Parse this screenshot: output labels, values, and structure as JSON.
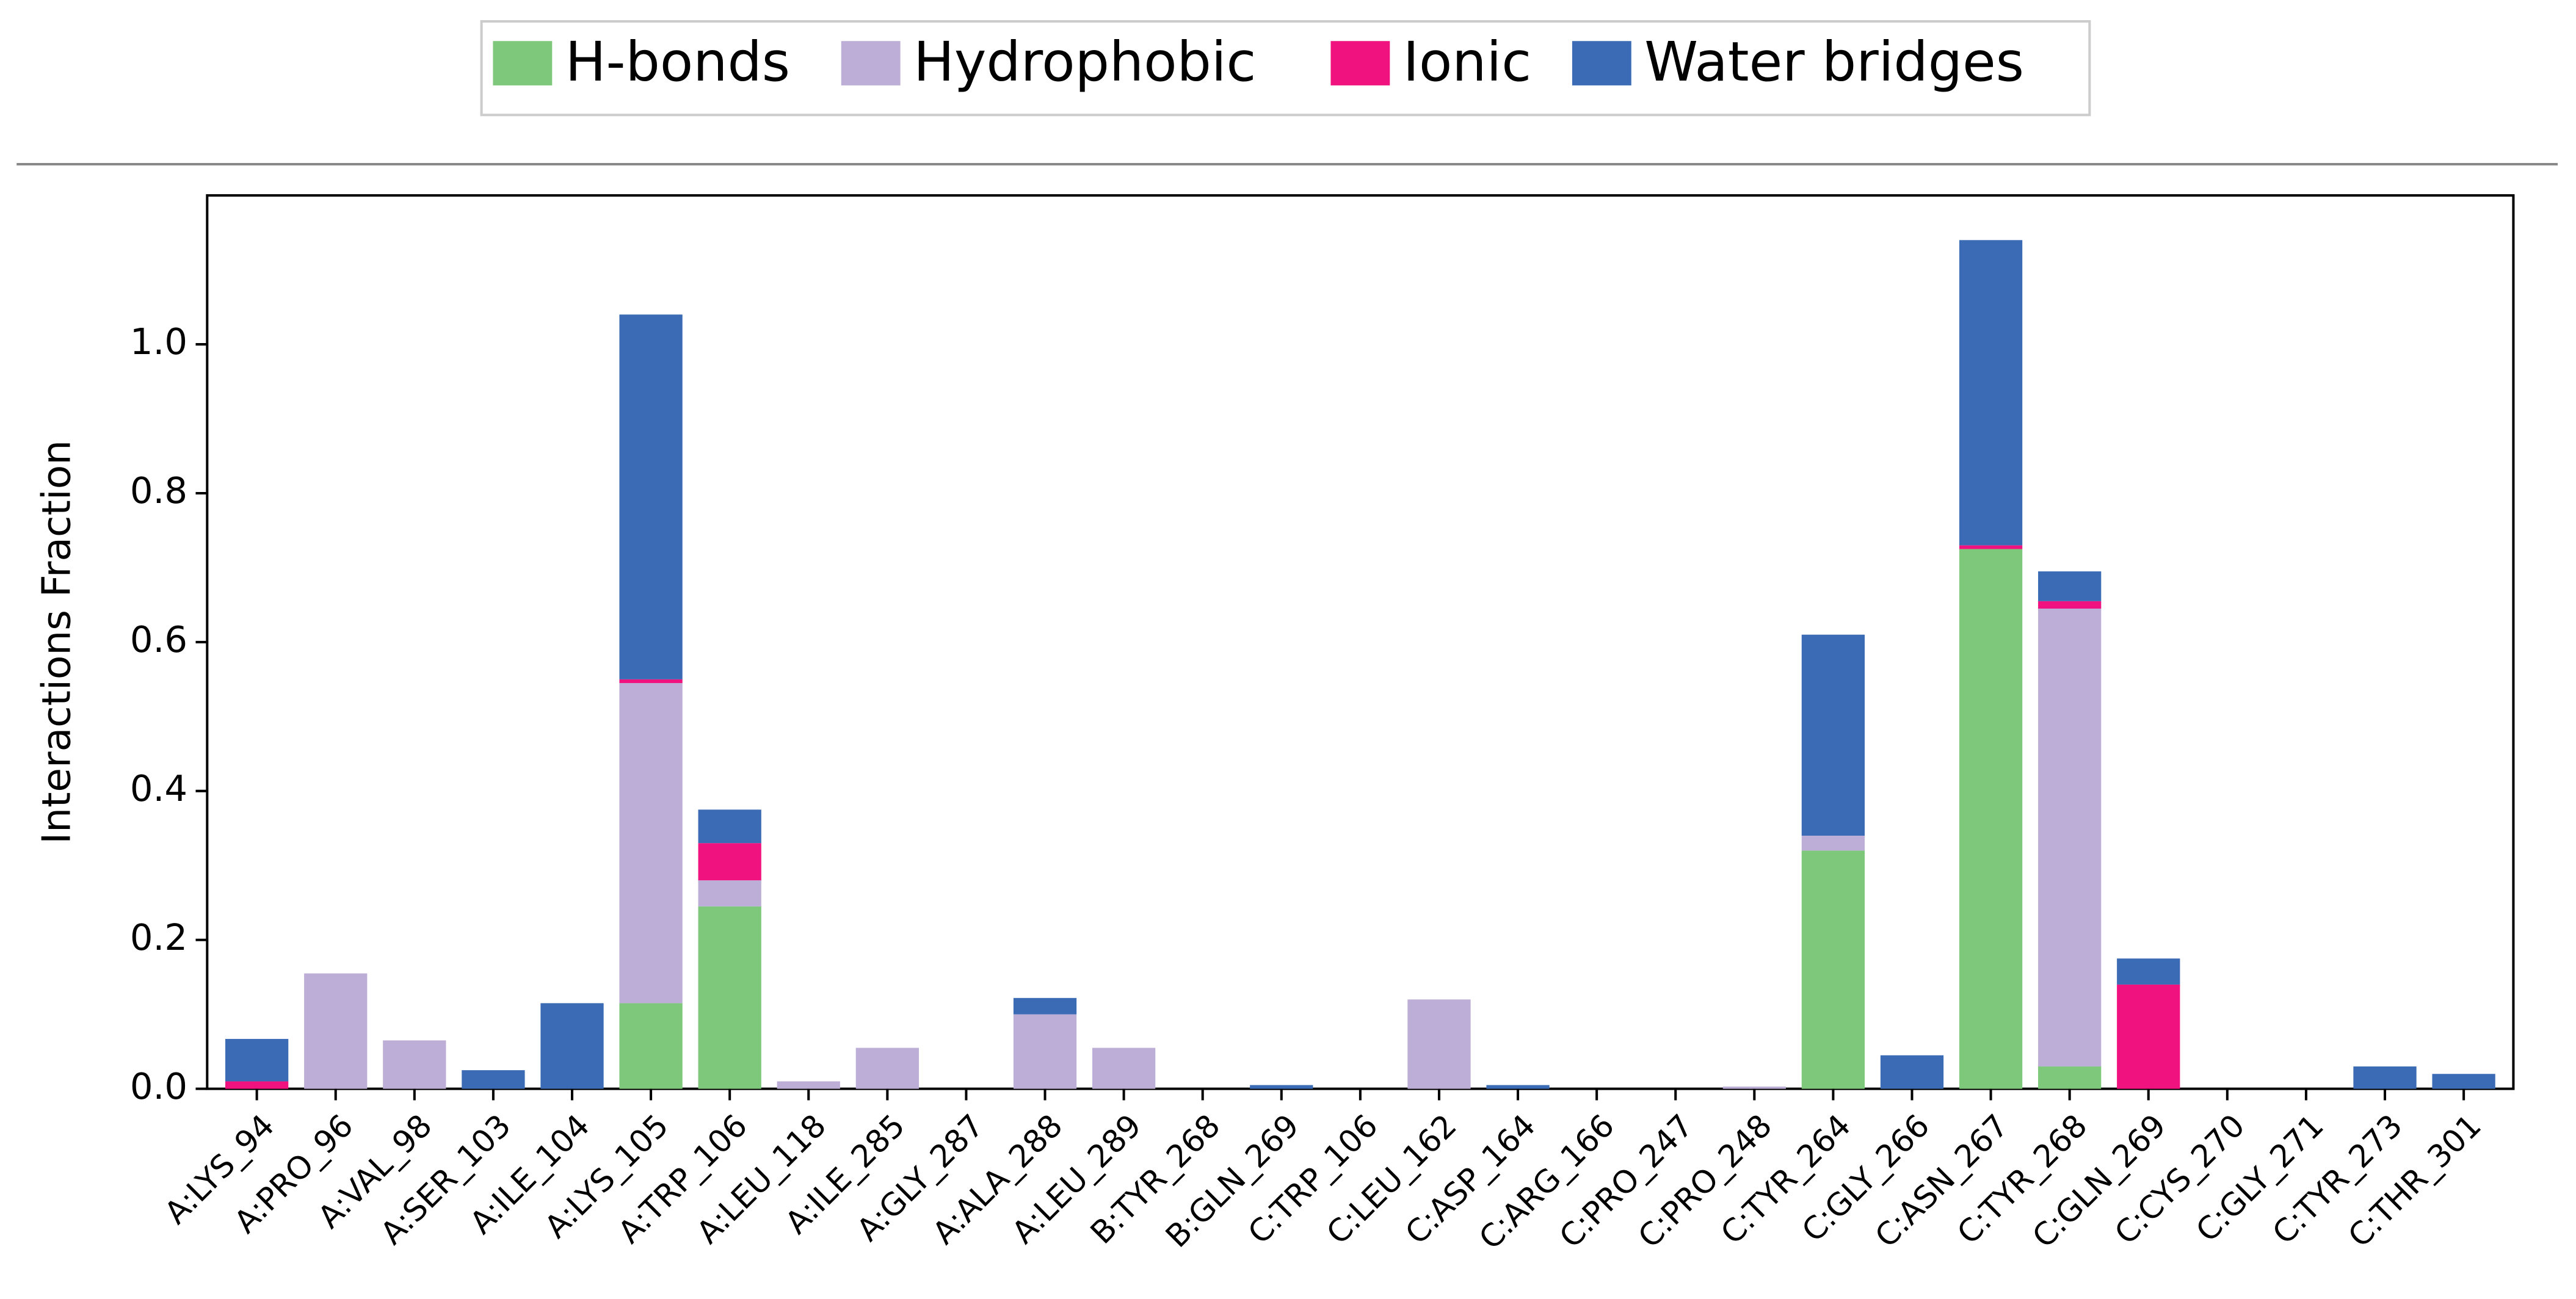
{
  "chart_data": {
    "type": "stacked_bar",
    "ylabel": "Interactions Fraction",
    "categories": [
      "A:LYS_94",
      "A:PRO_96",
      "A:VAL_98",
      "A:SER_103",
      "A:ILE_104",
      "A:LYS_105",
      "A:TRP_106",
      "A:LEU_118",
      "A:ILE_285",
      "A:GLY_287",
      "A:ALA_288",
      "A:LEU_289",
      "B:TYR_268",
      "B:GLN_269",
      "C:TRP_106",
      "C:LEU_162",
      "C:ASP_164",
      "C:ARG_166",
      "C:PRO_247",
      "C:PRO_248",
      "C:TYR_264",
      "C:GLY_266",
      "C:ASN_267",
      "C:TYR_268",
      "C:GLN_269",
      "C:CYS_270",
      "C:GLY_271",
      "C:TYR_273",
      "C:THR_301"
    ],
    "series": [
      {
        "name": "H-bonds",
        "color": "#7dc87a",
        "values": [
          0,
          0,
          0,
          0,
          0,
          0.115,
          0.245,
          0,
          0,
          0,
          0,
          0,
          0,
          0,
          0,
          0,
          0,
          0,
          0,
          0,
          0.32,
          0,
          0.725,
          0.03,
          0,
          0,
          0,
          0,
          0
        ]
      },
      {
        "name": "Hydrophobic",
        "color": "#bcaed6",
        "values": [
          0,
          0.155,
          0.065,
          0,
          0,
          0.43,
          0.035,
          0.01,
          0.055,
          0,
          0.1,
          0.055,
          0,
          0,
          0,
          0.12,
          0,
          0,
          0,
          0.003,
          0.02,
          0,
          0,
          0.615,
          0,
          0,
          0,
          0,
          0
        ]
      },
      {
        "name": "Ionic",
        "color": "#f0127f",
        "values": [
          0.01,
          0,
          0,
          0,
          0,
          0.005,
          0.05,
          0,
          0,
          0,
          0,
          0,
          0,
          0,
          0,
          0,
          0,
          0,
          0,
          0,
          0,
          0,
          0.005,
          0.01,
          0.14,
          0,
          0,
          0,
          0
        ]
      },
      {
        "name": "Water bridges",
        "color": "#3b6bb4",
        "values": [
          0.057,
          0,
          0,
          0.025,
          0.115,
          0.49,
          0.045,
          0,
          0,
          0,
          0.022,
          0,
          0,
          0.005,
          0,
          0,
          0.005,
          0,
          0,
          0,
          0.27,
          0.045,
          0.41,
          0.04,
          0.035,
          0,
          0,
          0.03,
          0.02
        ]
      }
    ],
    "ylim": [
      0,
      1.2
    ],
    "yticks": [
      {
        "value": 0,
        "label": "0.0"
      },
      {
        "value": 0.2,
        "label": "0.2"
      },
      {
        "value": 0.4,
        "label": "0.4"
      },
      {
        "value": 0.6,
        "label": "0.6"
      },
      {
        "value": 0.8,
        "label": "0.8"
      },
      {
        "value": 1.0,
        "label": "1.0"
      }
    ]
  }
}
